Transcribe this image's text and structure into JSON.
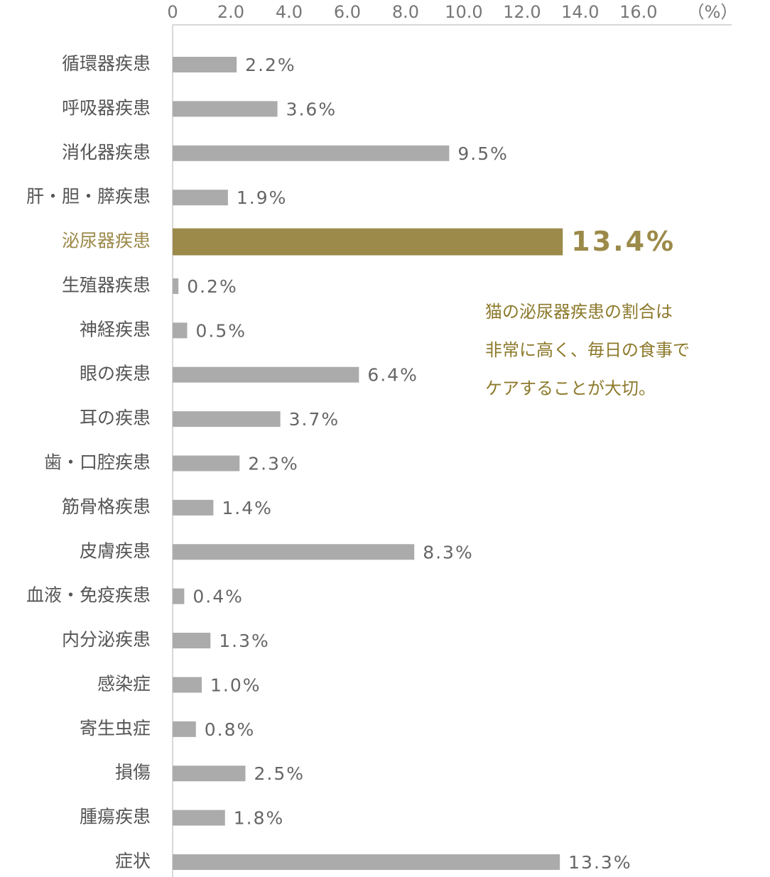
{
  "chart_data": {
    "type": "bar",
    "orientation": "horizontal",
    "categories": [
      "循環器疾患",
      "呼吸器疾患",
      "消化器疾患",
      "肝・胆・膵疾患",
      "泌尿器疾患",
      "生殖器疾患",
      "神経疾患",
      "眼の疾患",
      "耳の疾患",
      "歯・口腔疾患",
      "筋骨格疾患",
      "皮膚疾患",
      "血液・免疫疾患",
      "内分泌疾患",
      "感染症",
      "寄生虫症",
      "損傷",
      "腫瘍疾患",
      "症状"
    ],
    "values": [
      2.2,
      3.6,
      9.5,
      1.9,
      13.4,
      0.2,
      0.5,
      6.4,
      3.7,
      2.3,
      1.4,
      8.3,
      0.4,
      1.3,
      1.0,
      0.8,
      2.5,
      1.8,
      13.3
    ],
    "value_labels": [
      "2.2%",
      "3.6%",
      "9.5%",
      "1.9%",
      "13.4%",
      "0.2%",
      "0.5%",
      "6.4%",
      "3.7%",
      "2.3%",
      "1.4%",
      "8.3%",
      "0.4%",
      "1.3%",
      "1.0%",
      "0.8%",
      "2.5%",
      "1.8%",
      "13.3%"
    ],
    "colors": [
      "#aaabaa",
      "#aaabaa",
      "#aaabaa",
      "#aaabaa",
      "#9c8a4a",
      "#aaabaa",
      "#aaabaa",
      "#aaabaa",
      "#aaabaa",
      "#aaabaa",
      "#aaabaa",
      "#aaabaa",
      "#aaabaa",
      "#aaabaa",
      "#aaabaa",
      "#aaabaa",
      "#aaabaa",
      "#aaabaa",
      "#aaabaa"
    ],
    "xlim": [
      0,
      19.2
    ],
    "xticks": [
      0,
      {
        "value": 2,
        "label": "2.0"
      },
      {
        "value": 4,
        "label": "4.0"
      },
      {
        "value": 6,
        "label": "6.0"
      },
      {
        "value": 8,
        "label": "8.0"
      },
      {
        "value": 10,
        "label": "10.0"
      },
      {
        "value": 12,
        "label": "12.0"
      },
      {
        "value": 14,
        "label": "14.0"
      },
      {
        "value": 16,
        "label": "16.0"
      }
    ],
    "x_unit": "（%）",
    "grid": false,
    "annotation": [
      "猫の泌尿器疾患の割合は",
      "非常に高く、毎日の食事で",
      "ケアすることが大切。"
    ]
  }
}
